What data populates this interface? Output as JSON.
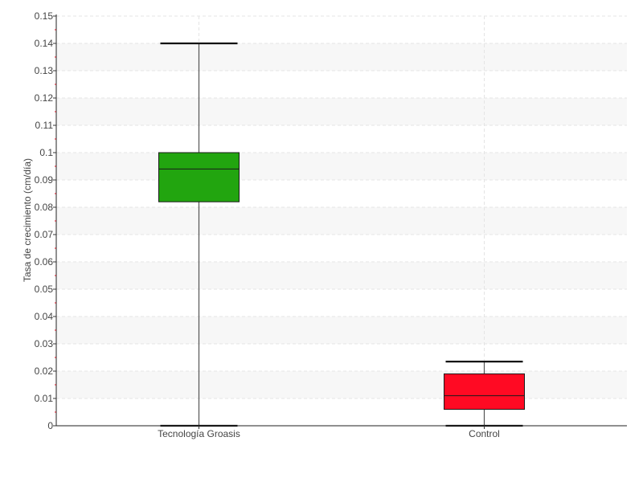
{
  "chart_data": {
    "type": "boxplot",
    "title": "",
    "xlabel": "",
    "ylabel": "Tasa de crecimiento (cm/día)",
    "ylim": [
      0,
      0.15
    ],
    "yticks": [
      "0",
      "0.01",
      "0.02",
      "0.03",
      "0.04",
      "0.05",
      "0.06",
      "0.07",
      "0.08",
      "0.09",
      "0.1",
      "0.11",
      "0.12",
      "0.13",
      "0.14",
      "0.15"
    ],
    "grid": "horizontal and vertical dashed, alternating light bands",
    "categories": [
      "Tecnología Groasis",
      "Control"
    ],
    "series": [
      {
        "category": "Tecnología Groasis",
        "min": 0.0,
        "q1": 0.082,
        "median": 0.094,
        "q3": 0.1,
        "max": 0.14,
        "color": "#22a50f"
      },
      {
        "category": "Control",
        "min": 0.0,
        "q1": 0.006,
        "median": 0.011,
        "q3": 0.019,
        "max": 0.0235,
        "color": "#ff0a23"
      }
    ]
  }
}
